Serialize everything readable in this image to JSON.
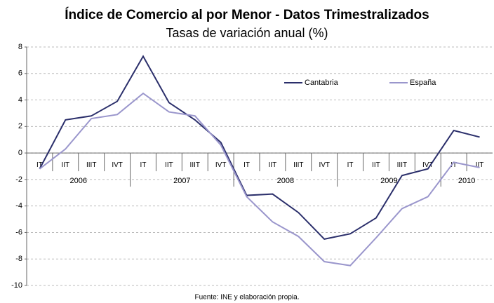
{
  "chart_data": {
    "type": "line",
    "title": "Índice de Comercio al por Menor - Datos Trimestralizados",
    "subtitle": "Tasas de variación anual (%)",
    "source": "Fuente: INE y elaboración propia.",
    "categories": [
      "IT",
      "IIT",
      "IIIT",
      "IVT",
      "IT",
      "IIT",
      "IIIT",
      "IVT",
      "IT",
      "IIT",
      "IIIT",
      "IVT",
      "IT",
      "IIT",
      "IIIT",
      "IVT",
      "IT",
      "IIT"
    ],
    "years": [
      "2006",
      "2007",
      "2008",
      "2009",
      "2010"
    ],
    "series": [
      {
        "name": "Cantabria",
        "color": "#2b2f6b",
        "values": [
          -1.2,
          2.5,
          2.8,
          3.9,
          7.3,
          3.8,
          2.5,
          0.8,
          -3.2,
          -3.1,
          -4.5,
          -6.5,
          -6.1,
          -4.9,
          -1.7,
          -1.2,
          1.7,
          1.2
        ]
      },
      {
        "name": "España",
        "color": "#9a96cc",
        "values": [
          -1.2,
          0.3,
          2.6,
          2.9,
          4.5,
          3.1,
          2.8,
          0.6,
          -3.3,
          -5.2,
          -6.3,
          -8.2,
          -8.5,
          -6.4,
          -4.2,
          -3.3,
          -0.7,
          -1.1
        ]
      }
    ],
    "ylim": [
      -10,
      8
    ],
    "yticks": [
      -10,
      -8,
      -6,
      -4,
      -2,
      0,
      2,
      4,
      6,
      8
    ],
    "grid": true
  }
}
